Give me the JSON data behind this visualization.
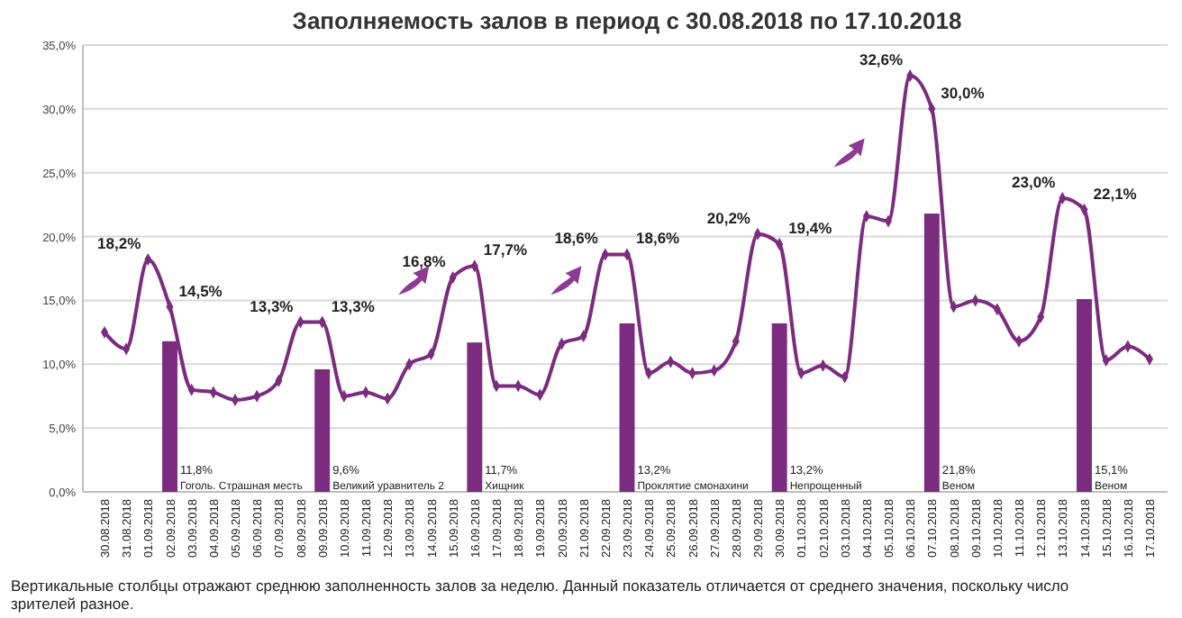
{
  "chart_data": {
    "type": "bar",
    "title": "Заполняемость залов в период с 30.08.2018 по 17.10.2018",
    "categories": [
      "30.08.2018",
      "31.08.2018",
      "01.09.2018",
      "02.09.2018",
      "03.09.2018",
      "04.09.2018",
      "05.09.2018",
      "06.09.2018",
      "07.09.2018",
      "08.09.2018",
      "09.09.2018",
      "10.09.2018",
      "11.09.2018",
      "12.09.2018",
      "13.09.2018",
      "14.09.2018",
      "15.09.2018",
      "16.09.2018",
      "17.09.2018",
      "18.09.2018",
      "19.09.2018",
      "20.09.2018",
      "21.09.2018",
      "22.09.2018",
      "23.09.2018",
      "24.09.2018",
      "25.09.2018",
      "26.09.2018",
      "27.09.2018",
      "28.09.2018",
      "29.09.2018",
      "30.09.2018",
      "01.10.2018",
      "02.10.2018",
      "03.10.2018",
      "04.10.2018",
      "05.10.2018",
      "06.10.2018",
      "07.10.2018",
      "08.10.2018",
      "09.10.2018",
      "10.10.2018",
      "11.10.2018",
      "12.10.2018",
      "13.10.2018",
      "14.10.2018",
      "15.10.2018",
      "16.10.2018",
      "17.10.2018"
    ],
    "series": [
      {
        "color": "#7b2c7f",
        "values": [
          null,
          null,
          null,
          11.8,
          null,
          null,
          null,
          null,
          null,
          null,
          9.6,
          null,
          null,
          null,
          null,
          null,
          null,
          11.7,
          null,
          null,
          null,
          null,
          null,
          null,
          13.2,
          null,
          null,
          null,
          null,
          null,
          null,
          13.2,
          null,
          null,
          null,
          null,
          null,
          null,
          21.8,
          null,
          null,
          null,
          null,
          null,
          null,
          15.1,
          null,
          null,
          null
        ]
      },
      {
        "type": "line",
        "color": "#7b2c7f",
        "values": [
          12.5,
          11.2,
          18.2,
          14.5,
          8.0,
          7.8,
          7.2,
          7.5,
          8.7,
          13.3,
          13.3,
          7.5,
          7.8,
          7.3,
          10.0,
          10.8,
          16.8,
          17.7,
          8.3,
          8.3,
          7.6,
          11.6,
          12.2,
          18.6,
          18.6,
          9.3,
          10.2,
          9.3,
          9.5,
          11.8,
          20.2,
          19.4,
          9.3,
          9.9,
          9.0,
          21.6,
          21.2,
          32.6,
          30.0,
          14.5,
          15.0,
          14.3,
          11.8,
          13.7,
          23.0,
          22.1,
          10.3,
          11.4,
          10.4
        ],
        "value_labels": [
          null,
          null,
          "18,2%",
          "14,5%",
          null,
          null,
          null,
          null,
          null,
          "13,3%",
          "13,3%",
          null,
          null,
          null,
          null,
          null,
          "16,8%",
          "17,7%",
          null,
          null,
          null,
          null,
          null,
          "18,6%",
          "18,6%",
          null,
          null,
          null,
          null,
          null,
          "20,2%",
          "19,4%",
          null,
          null,
          null,
          null,
          null,
          "32,6%",
          "30,0%",
          null,
          null,
          null,
          null,
          null,
          "23,0%",
          "22,1%",
          null,
          null,
          null
        ]
      }
    ],
    "ylim": [
      0,
      35
    ],
    "yticks": [
      {
        "value": 0,
        "label": "0,0%"
      },
      {
        "value": 5,
        "label": "5,0%"
      },
      {
        "value": 10,
        "label": "10,0%"
      },
      {
        "value": 15,
        "label": "15,0%"
      },
      {
        "value": 20,
        "label": "20,0%"
      },
      {
        "value": 25,
        "label": "25,0%"
      },
      {
        "value": 30,
        "label": "30,0%"
      },
      {
        "value": 35,
        "label": "35,0%"
      }
    ],
    "grid": "y",
    "marker": "diamond",
    "line_style": "solid",
    "annotations": [
      {
        "text": "11,8%\nГоголь. Страшная месть",
        "x": "02.09.2018",
        "y": 0
      },
      {
        "text": "9,6%\nВеликий уравнитель 2",
        "x": "09.09.2018",
        "y": 0
      },
      {
        "text": "11,7%\nХищник",
        "x": "16.09.2018",
        "y": 0
      },
      {
        "text": "13,2%\nПроклятие смонахини",
        "x": "23.09.2018",
        "y": 0
      },
      {
        "text": "13,2%\nНепрощенный",
        "x": "30.09.2018",
        "y": 0
      },
      {
        "text": "21,8%\nВеном",
        "x": "07.10.2018",
        "y": 0
      },
      {
        "text": "15,1%\nВеном",
        "x": "14.10.2018",
        "y": 0
      },
      "Вертикальные столбцы отражают среднюю заполненность залов за неделю. Данный показатель отличается от среднего значения, поскольку число зрителей разное."
    ]
  }
}
